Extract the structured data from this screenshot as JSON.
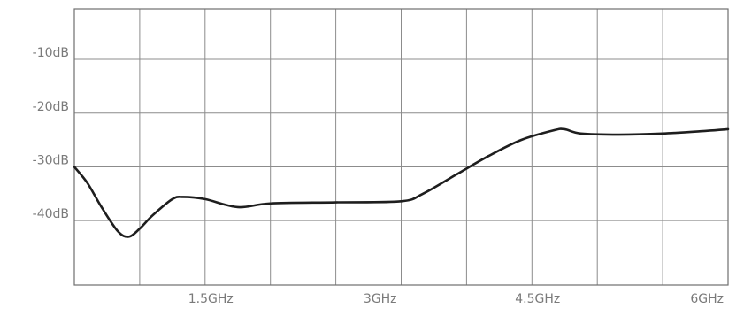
{
  "chart_data": {
    "type": "line",
    "title": "",
    "xlabel": "",
    "ylabel": "",
    "xlim": [
      0,
      6
    ],
    "ylim": [
      -52,
      -0.6
    ],
    "grid": true,
    "x_gridlines": [
      0.6,
      1.2,
      1.8,
      2.4,
      3.0,
      3.6,
      4.2,
      4.8,
      5.4
    ],
    "y_gridlines": [
      -10,
      -20,
      -30,
      -40
    ],
    "x_ticks": [
      {
        "value": 1.5,
        "label": "1.5GHz"
      },
      {
        "value": 3.0,
        "label": "3GHz"
      },
      {
        "value": 4.5,
        "label": "4.5GHz"
      },
      {
        "value": 6.0,
        "label": "6GHz"
      }
    ],
    "y_ticks": [
      {
        "value": -10,
        "label": "-10dB"
      },
      {
        "value": -20,
        "label": "-20dB"
      },
      {
        "value": -30,
        "label": "-30dB"
      },
      {
        "value": -40,
        "label": "-40dB"
      }
    ],
    "series": [
      {
        "color": "#1e1e1e",
        "x": [
          0.0,
          0.12,
          0.25,
          0.4,
          0.5,
          0.6,
          0.72,
          0.9,
          1.0,
          1.2,
          1.5,
          1.8,
          2.4,
          3.0,
          3.2,
          3.5,
          3.8,
          4.1,
          4.4,
          4.5,
          4.65,
          5.0,
          5.4,
          5.8,
          6.0
        ],
        "y": [
          -30.0,
          -33.0,
          -37.5,
          -42.0,
          -43.0,
          -41.5,
          -39.0,
          -36.0,
          -35.6,
          -36.0,
          -37.5,
          -36.8,
          -36.6,
          -36.4,
          -35.0,
          -31.5,
          -28.0,
          -25.0,
          -23.2,
          -23.0,
          -23.8,
          -24.0,
          -23.8,
          -23.3,
          -23.0
        ]
      }
    ]
  }
}
